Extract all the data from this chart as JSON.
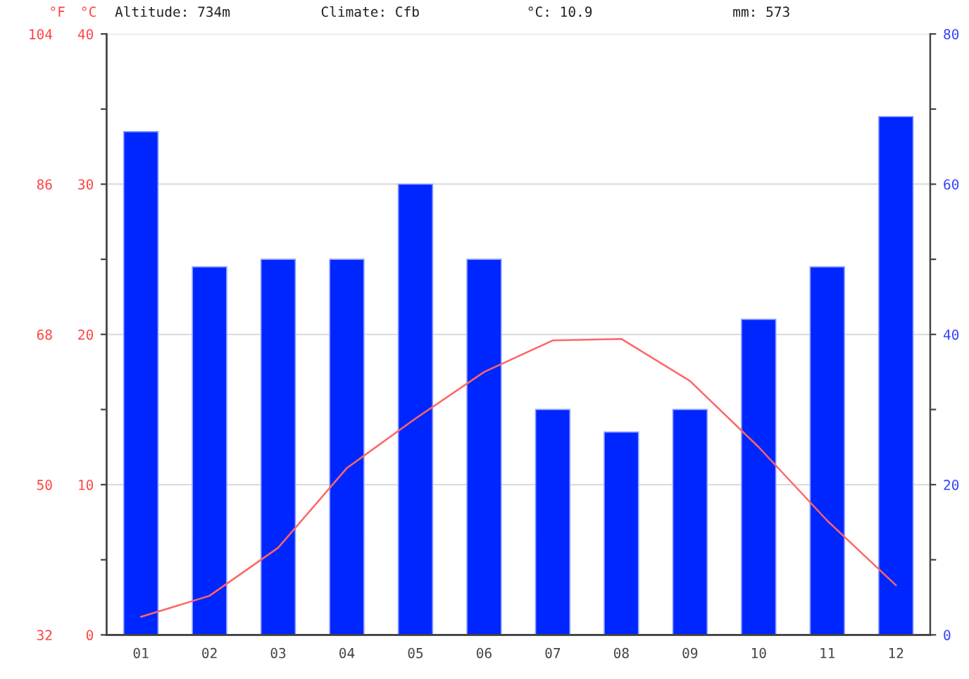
{
  "chart_data": {
    "type": "bar",
    "annotations": [
      "Altitude: 734m",
      "Climate: Cfb",
      "°C: 10.9",
      "mm: 573"
    ],
    "ylabel": "°C",
    "y3label": "°F",
    "categories": [
      "01",
      "02",
      "03",
      "04",
      "05",
      "06",
      "07",
      "08",
      "09",
      "10",
      "11",
      "12"
    ],
    "series": [
      {
        "axis": "y2",
        "color": "#0026ff",
        "values": [
          67,
          49,
          50,
          50,
          60,
          50,
          30,
          27,
          30,
          42,
          49,
          69
        ]
      },
      {
        "type": "line",
        "axis": "y",
        "color": "#ff6666",
        "values": [
          1.2,
          2.6,
          5.8,
          11.1,
          14.4,
          17.5,
          19.6,
          19.7,
          16.9,
          12.5,
          7.6,
          3.3
        ]
      }
    ],
    "ylim": [
      0,
      40
    ],
    "yticks": [
      0,
      {
        "value": 5,
        "label": null
      },
      10,
      {
        "value": 15,
        "label": null
      },
      20,
      {
        "value": 25,
        "label": null
      },
      30,
      {
        "value": 35,
        "label": null
      },
      40
    ],
    "y3lim": [
      32,
      104
    ],
    "y3ticks": [
      32,
      50,
      68,
      86,
      104
    ],
    "y2lim": [
      0,
      80
    ],
    "y2ticks": [
      0,
      {
        "value": 10,
        "label": null
      },
      20,
      {
        "value": 30,
        "label": null
      },
      40,
      {
        "value": 50,
        "label": null
      },
      60,
      {
        "value": 70,
        "label": null
      },
      80
    ],
    "grid": "y",
    "legend": false
  }
}
